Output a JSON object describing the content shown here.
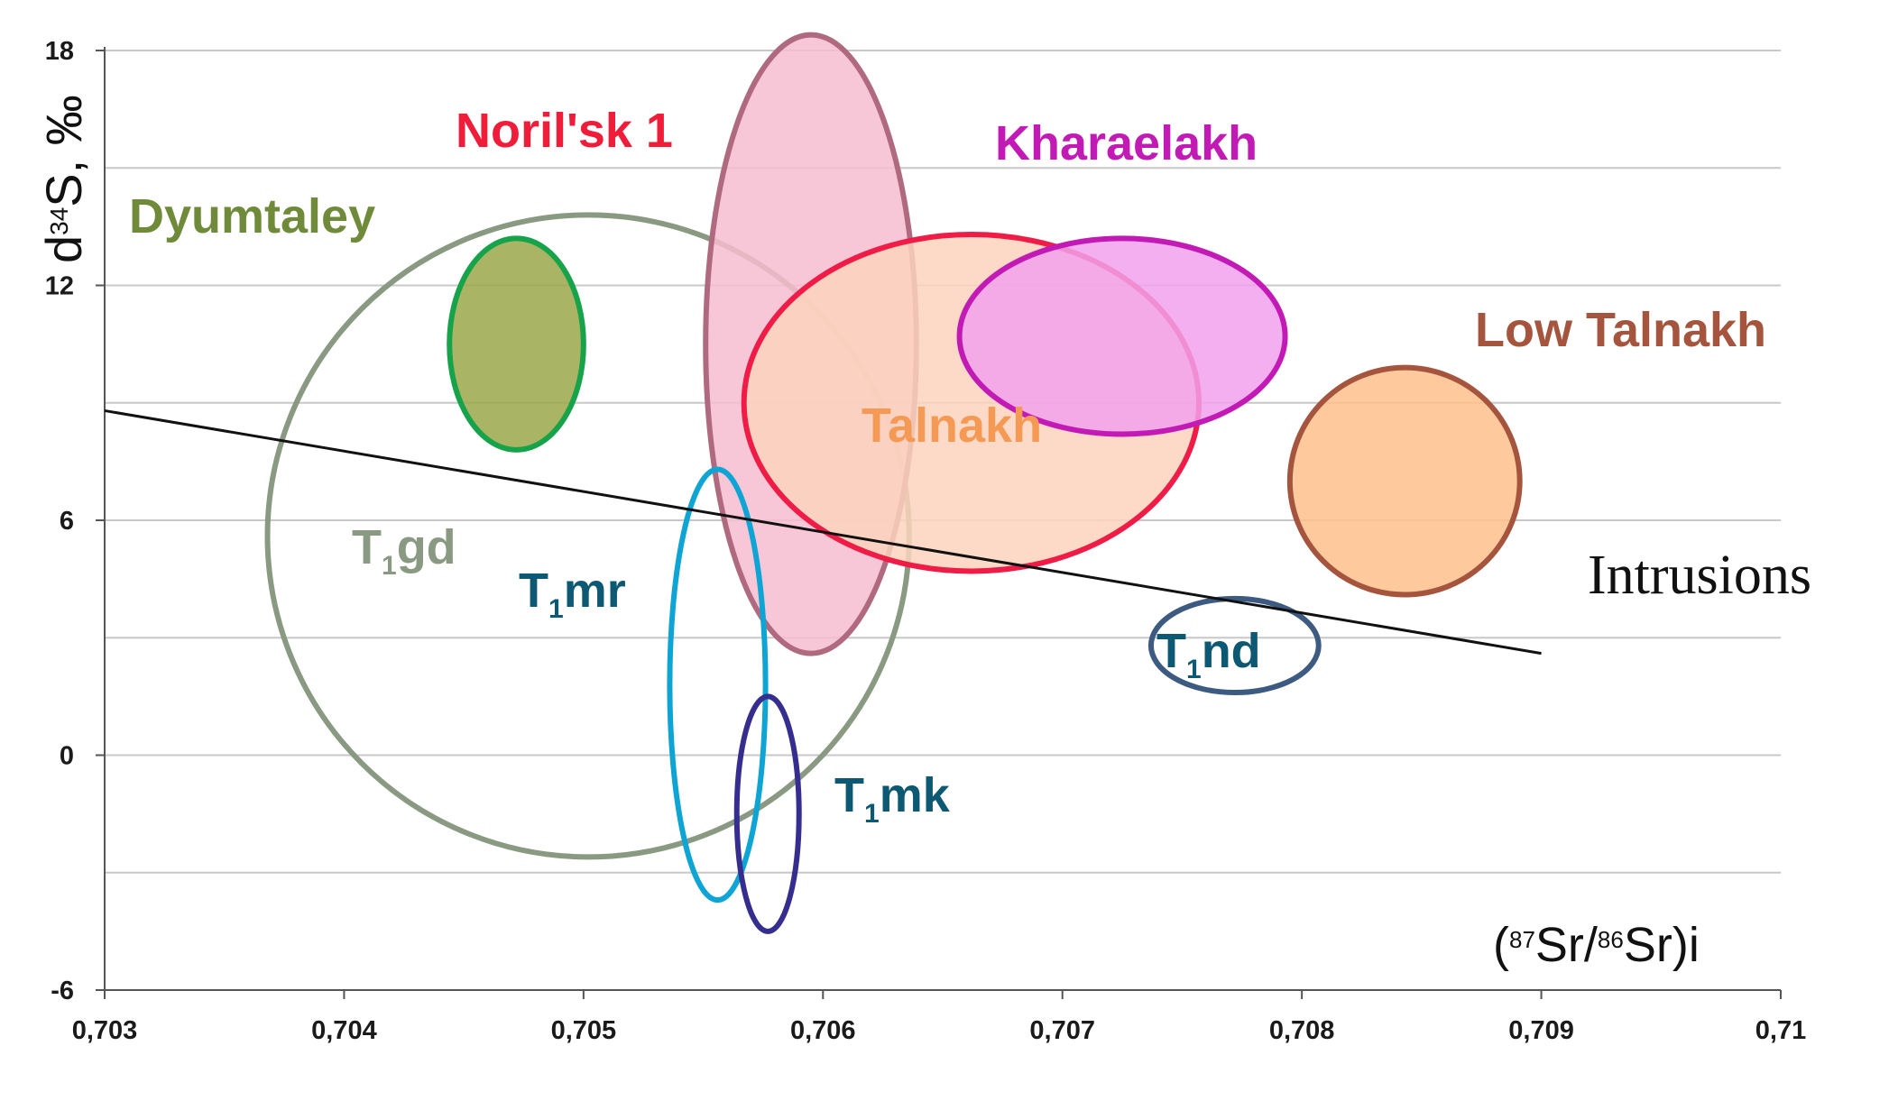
{
  "chart_data": {
    "type": "scatter",
    "title": "",
    "xlabel": "(87Sr/86Sr)i",
    "ylabel": "d34S, ‰",
    "xlim": [
      0.703,
      0.71
    ],
    "ylim": [
      -6,
      18
    ],
    "grid": true,
    "x_ticks": [
      "0,703",
      "0,704",
      "0,705",
      "0,706",
      "0,707",
      "0,708",
      "0,709",
      "0,71"
    ],
    "y_ticks": [
      "18",
      "12",
      "6",
      "0",
      "-6"
    ],
    "regions": [
      {
        "name": "Dyumtaley",
        "label": "Dyumtaley",
        "cx": 0.70472,
        "cy": 10.5,
        "rx": 0.00028,
        "ry": 2.7,
        "stroke": "#16a34a",
        "fill": "#9aa84a"
      },
      {
        "name": "Noril'sk 1",
        "label": "Noril'sk 1",
        "cx": 0.70595,
        "cy": 10.5,
        "rx": 0.00044,
        "ry": 7.9,
        "stroke": "#b06a80",
        "fill": "#f7bdd0"
      },
      {
        "name": "Talnakh",
        "label": "Talnakh",
        "cx": 0.70662,
        "cy": 9.0,
        "rx": 0.00095,
        "ry": 4.3,
        "stroke": "#ef1c48",
        "fill": "#fcd4bd"
      },
      {
        "name": "Kharaelakh",
        "label": "Kharaelakh",
        "cx": 0.70725,
        "cy": 10.7,
        "rx": 0.00068,
        "ry": 2.5,
        "stroke": "#c21bb5",
        "fill": "#f1a1ec"
      },
      {
        "name": "Low Talnakh",
        "label": "Low Talnakh",
        "cx": 0.70843,
        "cy": 7.0,
        "rx": 0.00048,
        "ry": 2.9,
        "stroke": "#a5553e",
        "fill": "#ffc08d"
      },
      {
        "name": "T1gd",
        "label": "T",
        "sub": "1",
        "suffix": "gd",
        "cx": 0.70502,
        "cy": 5.6,
        "rx": 0.00134,
        "ry": 8.2,
        "stroke": "#8a9a82",
        "fill": "none"
      },
      {
        "name": "T1mr",
        "label": "T",
        "sub": "1",
        "suffix": "mr",
        "cx": 0.70556,
        "cy": 1.8,
        "rx": 0.0002,
        "ry": 5.5,
        "stroke": "#0ea5d4",
        "fill": "none"
      },
      {
        "name": "T1mk",
        "label": "T",
        "sub": "1",
        "suffix": "mk",
        "cx": 0.70577,
        "cy": -1.5,
        "rx": 0.00013,
        "ry": 3.0,
        "stroke": "#362e8f",
        "fill": "none"
      },
      {
        "name": "T1nd",
        "label": "T",
        "sub": "1",
        "suffix": "nd",
        "cx": 0.70772,
        "cy": 2.8,
        "rx": 0.00035,
        "ry": 1.2,
        "stroke": "#3d5a80",
        "fill": "none"
      }
    ],
    "trendline": {
      "name": "Intrusions",
      "label": "Intrusions",
      "x": [
        0.703,
        0.709
      ],
      "y": [
        8.8,
        2.6
      ]
    },
    "colors": {
      "grid": "#c8c8c8",
      "axis": "#555555",
      "trendline": "#111111",
      "label_dyumtaley": "#6f8b3a",
      "label_norilsk": "#ef1c3a",
      "label_kharaelakh": "#c21bb5",
      "label_low_talnakh": "#a5553e",
      "label_talnakh": "#f59a54",
      "label_t1gd": "#8a9a82",
      "label_dark": "#0d5872"
    }
  }
}
